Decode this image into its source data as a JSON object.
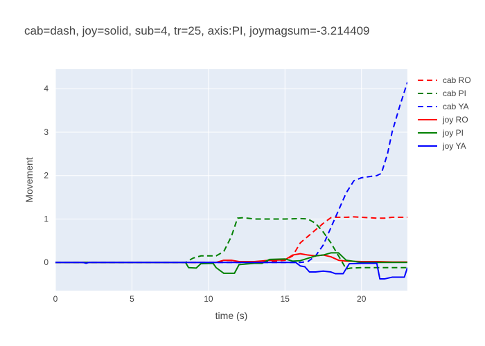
{
  "chart_data": {
    "type": "line",
    "title": "cab=dash, joy=solid, sub=4, tr=25, axis:PI, joymagsum=-3.214409",
    "xlabel": "time (s)",
    "ylabel": "Movement",
    "xlim": [
      0,
      23
    ],
    "ylim": [
      -0.65,
      4.45
    ],
    "x_ticks": [
      0,
      5,
      10,
      15,
      20
    ],
    "y_ticks": [
      0,
      1,
      2,
      3,
      4
    ],
    "grid": true,
    "legend_position": "right",
    "plot_background": "#E5ECF6",
    "series": [
      {
        "name": "cab RO",
        "color": "#ff0000",
        "dash": "dash",
        "x": [
          0,
          10,
          12,
          14,
          15,
          15.5,
          16,
          16.5,
          17,
          17.5,
          18,
          18.3,
          19,
          19.5,
          20,
          21,
          21.5,
          22,
          23
        ],
        "y": [
          0,
          0,
          0.01,
          0.02,
          0.05,
          0.15,
          0.45,
          0.6,
          0.75,
          0.9,
          1.03,
          1.04,
          1.04,
          1.05,
          1.04,
          1.02,
          1.02,
          1.04,
          1.04
        ]
      },
      {
        "name": "cab PI",
        "color": "#008000",
        "dash": "dash",
        "x": [
          0,
          8.5,
          9,
          9.5,
          10,
          10.5,
          11,
          11.5,
          11.9,
          12.3,
          13,
          14,
          15,
          16,
          16.5,
          17,
          17.5,
          18,
          18.5,
          19,
          19.3,
          20,
          21,
          22,
          23
        ],
        "y": [
          0,
          0,
          0.1,
          0.15,
          0.15,
          0.15,
          0.25,
          0.6,
          1.02,
          1.03,
          1.0,
          1.0,
          1.0,
          1.01,
          1.0,
          0.9,
          0.7,
          0.45,
          0.15,
          -0.15,
          -0.13,
          -0.12,
          -0.12,
          -0.12,
          -0.12
        ]
      },
      {
        "name": "cab YA",
        "color": "#0000ff",
        "dash": "dash",
        "x": [
          0,
          15,
          16,
          16.5,
          17,
          17.5,
          18,
          18.5,
          19,
          19.5,
          20,
          21,
          21.3,
          21.7,
          22,
          22.5,
          23
        ],
        "y": [
          0,
          0,
          0,
          0.02,
          0.15,
          0.4,
          0.8,
          1.2,
          1.6,
          1.88,
          1.95,
          2.0,
          2.05,
          2.5,
          3.0,
          3.6,
          4.15
        ]
      },
      {
        "name": "joy RO",
        "color": "#ff0000",
        "dash": "solid",
        "x": [
          0,
          10.5,
          11,
          11.5,
          12,
          13,
          14,
          15,
          15.5,
          16,
          16.5,
          17,
          17.5,
          18,
          18.5,
          19,
          20,
          21,
          22,
          23
        ],
        "y": [
          0,
          0,
          0.05,
          0.05,
          0.02,
          0.02,
          0.05,
          0.06,
          0.17,
          0.2,
          0.17,
          0.15,
          0.17,
          0.13,
          0.05,
          0.03,
          0.02,
          0.02,
          0.01,
          0.01
        ]
      },
      {
        "name": "joy PI",
        "color": "#008000",
        "dash": "solid",
        "x": [
          0,
          8.5,
          8.7,
          9.2,
          9.5,
          10.3,
          10.5,
          11,
          11.7,
          12,
          13,
          13.5,
          14,
          15,
          15.5,
          16,
          17,
          17.5,
          18,
          18.5,
          19,
          20,
          23
        ],
        "y": [
          0,
          0,
          -0.12,
          -0.13,
          -0.03,
          -0.02,
          -0.12,
          -0.25,
          -0.25,
          -0.05,
          -0.02,
          -0.02,
          0.07,
          0.08,
          0.03,
          0.04,
          0.15,
          0.17,
          0.22,
          0.22,
          0.05,
          0.0,
          0.0
        ]
      },
      {
        "name": "joy YA",
        "color": "#0000ff",
        "dash": "solid",
        "x": [
          0,
          1.8,
          2,
          2.2,
          15,
          15.7,
          16,
          16.3,
          16.6,
          17,
          17.5,
          18,
          18.3,
          18.8,
          19.2,
          20,
          21,
          21.2,
          21.5,
          22,
          22.8,
          23
        ],
        "y": [
          0,
          0,
          -0.02,
          0,
          0,
          0,
          -0.08,
          -0.1,
          -0.22,
          -0.22,
          -0.2,
          -0.22,
          -0.26,
          -0.26,
          -0.03,
          -0.02,
          -0.02,
          -0.38,
          -0.38,
          -0.34,
          -0.34,
          -0.12
        ]
      }
    ]
  }
}
